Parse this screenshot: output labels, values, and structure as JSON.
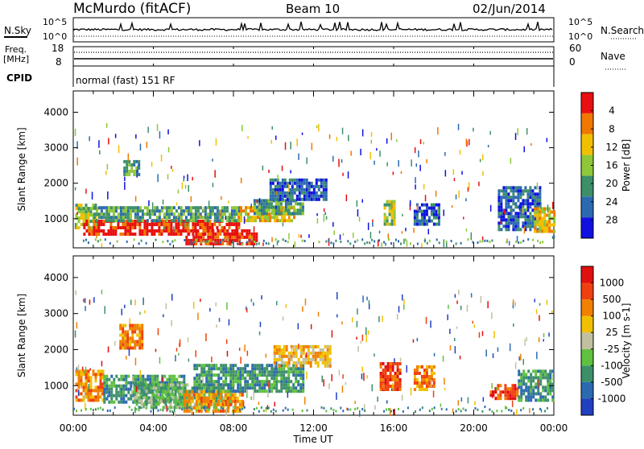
{
  "header": {
    "station": "McMurdo (fitACF)",
    "beam": "Beam 10",
    "date": "02/Jun/2014"
  },
  "top_panels": {
    "nsky_label": "N.Sky",
    "nsearch_label": "N.Search",
    "nsky_ticks": [
      "10^5",
      "10^0"
    ],
    "nsearch_ticks": [
      "10^5",
      "10^0"
    ],
    "freq_label": "Freq.",
    "freq_unit": "[MHz]",
    "freq_ticks": [
      "18",
      "8"
    ],
    "nave_label": "Nave",
    "nave_ticks": [
      "60",
      "0"
    ],
    "cpid_label": "CPID",
    "cpid_text": "normal (fast) 151 RF"
  },
  "x_axis": {
    "label": "Time UT",
    "ticks": [
      "00:00",
      "04:00",
      "08:00",
      "12:00",
      "16:00",
      "20:00",
      "00:00"
    ],
    "range_hours": [
      0,
      24
    ]
  },
  "chart_data": [
    {
      "type": "heatmap",
      "name": "power",
      "ylabel": "Slant Range [km]",
      "ylim": [
        180,
        4600
      ],
      "yticks": [
        1000,
        2000,
        3000,
        4000
      ],
      "colorbar_label": "Power [dB]",
      "colorbar_ticks": [
        "4",
        "8",
        "12",
        "16",
        "20",
        "24",
        "28"
      ],
      "colorbar_colors": [
        "#1010e0",
        "#2c6ab0",
        "#3d8f6a",
        "#8ec83a",
        "#f0c000",
        "#f07800",
        "#e81010"
      ],
      "regions": [
        {
          "t0": 0.1,
          "t1": 1.2,
          "r0": 700,
          "r1": 1400,
          "level": 3
        },
        {
          "t0": 0.5,
          "t1": 8.3,
          "r0": 520,
          "r1": 950,
          "level": 6
        },
        {
          "t0": 1.0,
          "t1": 8.3,
          "r0": 900,
          "r1": 1300,
          "level": 2
        },
        {
          "t0": 5.6,
          "t1": 9.2,
          "r0": 250,
          "r1": 620,
          "level": 6
        },
        {
          "t0": 8.2,
          "t1": 11.0,
          "r0": 900,
          "r1": 1350,
          "level": 4
        },
        {
          "t0": 9.0,
          "t1": 11.5,
          "r0": 1100,
          "r1": 1500,
          "level": 2
        },
        {
          "t0": 2.5,
          "t1": 3.3,
          "r0": 2200,
          "r1": 2600,
          "level": 2
        },
        {
          "t0": 9.8,
          "t1": 12.6,
          "r0": 1500,
          "r1": 2100,
          "level": 1
        },
        {
          "t0": 15.5,
          "t1": 16.0,
          "r0": 800,
          "r1": 1500,
          "level": 3
        },
        {
          "t0": 17.0,
          "t1": 18.3,
          "r0": 800,
          "r1": 1400,
          "level": 1
        },
        {
          "t0": 21.2,
          "t1": 23.3,
          "r0": 650,
          "r1": 1900,
          "level": 1
        },
        {
          "t0": 23.0,
          "t1": 24.0,
          "r0": 600,
          "r1": 1300,
          "level": 4
        }
      ]
    },
    {
      "type": "heatmap",
      "name": "velocity",
      "ylabel": "Slant Range [km]",
      "ylim": [
        180,
        4600
      ],
      "yticks": [
        1000,
        2000,
        3000,
        4000
      ],
      "colorbar_label": "Velocity [m s-1]",
      "colorbar_ticks": [
        "1000",
        "500",
        "100",
        "25",
        "-25",
        "-100",
        "-500",
        "-1000"
      ],
      "colorbar_colors": [
        "#2040c0",
        "#2c6ab0",
        "#3d8f6a",
        "#60c040",
        "#c0c0a0",
        "#f0c000",
        "#f08000",
        "#f04010",
        "#e01010"
      ],
      "regions": [
        {
          "t0": 0.1,
          "t1": 1.5,
          "r0": 550,
          "r1": 1400,
          "level": 6
        },
        {
          "t0": 1.5,
          "t1": 5.5,
          "r0": 500,
          "r1": 1300,
          "level": 2
        },
        {
          "t0": 3.0,
          "t1": 8.0,
          "r0": 350,
          "r1": 1000,
          "level": 3
        },
        {
          "t0": 5.5,
          "t1": 8.5,
          "r0": 250,
          "r1": 800,
          "level": 6
        },
        {
          "t0": 6.0,
          "t1": 11.5,
          "r0": 800,
          "r1": 1600,
          "level": 2
        },
        {
          "t0": 2.3,
          "t1": 3.5,
          "r0": 2000,
          "r1": 2700,
          "level": 6
        },
        {
          "t0": 10.0,
          "t1": 12.8,
          "r0": 1500,
          "r1": 2100,
          "level": 5
        },
        {
          "t0": 15.3,
          "t1": 16.3,
          "r0": 850,
          "r1": 1650,
          "level": 7
        },
        {
          "t0": 17.0,
          "t1": 18.0,
          "r0": 850,
          "r1": 1500,
          "level": 6
        },
        {
          "t0": 20.8,
          "t1": 22.2,
          "r0": 600,
          "r1": 1000,
          "level": 7
        },
        {
          "t0": 22.2,
          "t1": 24.0,
          "r0": 550,
          "r1": 1400,
          "level": 2
        }
      ]
    }
  ]
}
